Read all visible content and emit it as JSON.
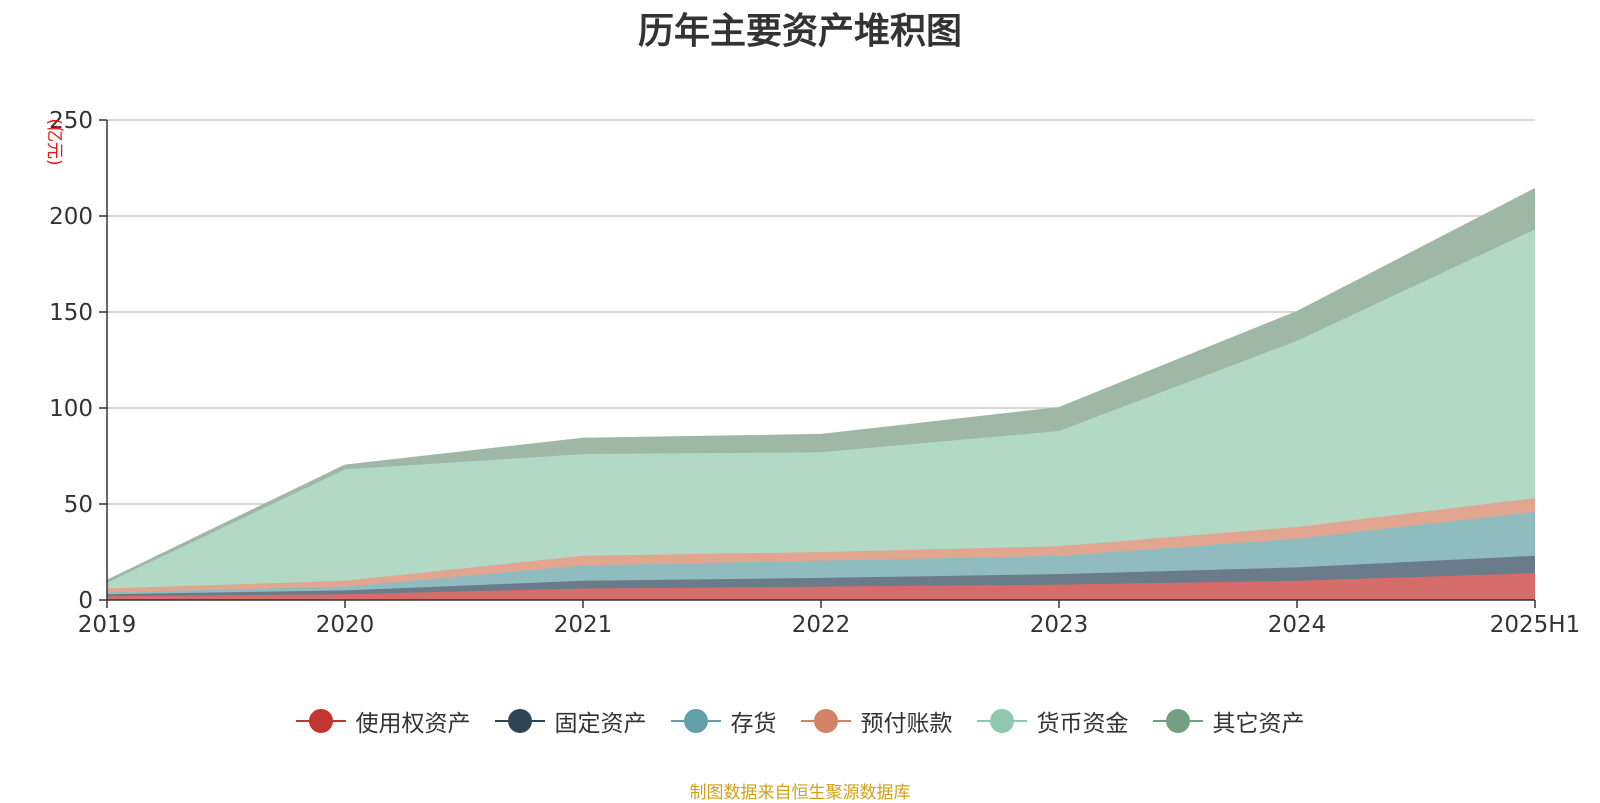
{
  "title": "历年主要资产堆积图",
  "source_note": "制图数据来自恒生聚源数据库",
  "chart_data": {
    "type": "area",
    "stacked": true,
    "title": "历年主要资产堆积图",
    "ylabel": "(亿元)",
    "xlabel": "",
    "categories": [
      "2019",
      "2020",
      "2021",
      "2022",
      "2023",
      "2024",
      "2025H1"
    ],
    "ylim": [
      0,
      250
    ],
    "yticks": [
      0,
      50,
      100,
      150,
      200,
      250
    ],
    "grid": true,
    "legend_position": "bottom",
    "series": [
      {
        "name": "使用权资产",
        "color": "#c23531",
        "fill": "#d56d6b",
        "values": [
          2,
          3,
          6,
          7,
          8,
          10,
          14
        ]
      },
      {
        "name": "固定资产",
        "color": "#2f4554",
        "fill": "#6a7b89",
        "values": [
          1,
          2,
          4,
          4.5,
          5.5,
          7,
          9
        ]
      },
      {
        "name": "存货",
        "color": "#61a0a8",
        "fill": "#90bcc0",
        "values": [
          1,
          2,
          8,
          9,
          9.5,
          15,
          23
        ]
      },
      {
        "name": "预付账款",
        "color": "#d48265",
        "fill": "#e1a590",
        "values": [
          2,
          3,
          5,
          4.5,
          5,
          6,
          7
        ]
      },
      {
        "name": "货币资金",
        "color": "#91c7ae",
        "fill": "#b2d8c6",
        "values": [
          3,
          58,
          53,
          52,
          60,
          97,
          140
        ]
      },
      {
        "name": "其它资产",
        "color": "#749f83",
        "fill": "#9eb8a5",
        "values": [
          1,
          2,
          8,
          9,
          12,
          15,
          21
        ]
      }
    ]
  }
}
